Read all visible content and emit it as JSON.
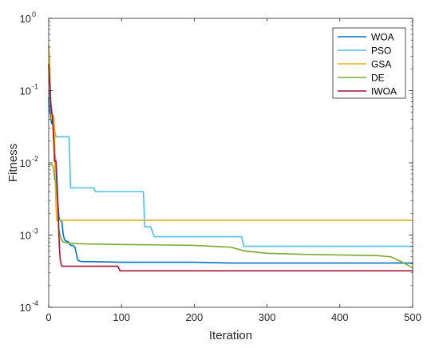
{
  "chart_data": {
    "type": "line",
    "title": "",
    "xlabel": "Iteration",
    "ylabel": "Fitness",
    "xlim": [
      0,
      500
    ],
    "ylim": [
      0.0001,
      1
    ],
    "yscale": "log",
    "grid": false,
    "legend_position": "top-right",
    "x_ticks": [
      {
        "value": 0,
        "label": "0"
      },
      {
        "value": 100,
        "label": "100"
      },
      {
        "value": 200,
        "label": "200"
      },
      {
        "value": 300,
        "label": "300"
      },
      {
        "value": 400,
        "label": "400"
      },
      {
        "value": 500,
        "label": "500"
      }
    ],
    "y_ticks": [
      {
        "value": 0.0001,
        "base": "10",
        "exp": "-4"
      },
      {
        "value": 0.001,
        "base": "10",
        "exp": "-3"
      },
      {
        "value": 0.01,
        "base": "10",
        "exp": "-2"
      },
      {
        "value": 0.1,
        "base": "10",
        "exp": "-1"
      },
      {
        "value": 1,
        "base": "10",
        "exp": "0"
      }
    ],
    "series": [
      {
        "name": "WOA",
        "color": "#0072BD",
        "x": [
          0,
          1,
          2,
          3,
          4,
          5,
          6,
          7,
          8,
          9,
          10,
          11,
          12,
          13,
          14,
          15,
          16,
          17,
          18,
          20,
          22,
          24,
          26,
          28,
          30,
          33,
          36,
          38,
          40,
          44,
          50,
          100,
          150,
          200,
          250,
          300,
          350,
          400,
          450,
          500
        ],
        "values": [
          0.0795,
          0.055,
          0.05,
          0.042,
          0.035,
          0.04,
          0.035,
          0.02,
          0.015,
          0.012,
          0.01,
          0.005,
          0.0035,
          0.0025,
          0.0018,
          0.00158,
          0.00158,
          0.00158,
          0.00158,
          0.001,
          0.00085,
          0.00082,
          0.00082,
          0.00078,
          0.00072,
          0.00072,
          0.00068,
          0.00055,
          0.00045,
          0.00043,
          0.00043,
          0.00042,
          0.00042,
          0.00042,
          0.00041,
          0.00041,
          0.00041,
          0.00041,
          0.00041,
          0.00041
        ]
      },
      {
        "name": "PSO",
        "color": "#4DBEEE",
        "x": [
          0,
          3,
          6,
          9,
          10,
          12,
          14,
          28,
          30,
          62,
          64,
          130,
          132,
          140,
          145,
          265,
          268,
          500
        ],
        "values": [
          0.1,
          0.07,
          0.04,
          0.025,
          0.0229,
          0.0229,
          0.0229,
          0.0229,
          0.0045,
          0.0045,
          0.004,
          0.004,
          0.0013,
          0.0013,
          0.00095,
          0.00095,
          0.0007,
          0.0007
        ]
      },
      {
        "name": "GSA",
        "color": "#EDB120",
        "x": [
          0,
          1,
          2,
          3,
          4,
          5,
          6,
          7,
          8,
          9,
          10,
          11,
          12,
          500
        ],
        "values": [
          0.42,
          0.3,
          0.15,
          0.06,
          0.04,
          0.045,
          0.045,
          0.045,
          0.03,
          0.006,
          0.0025,
          0.0016,
          0.0016,
          0.0016
        ]
      },
      {
        "name": "DE",
        "color": "#77AC30",
        "x": [
          0,
          2,
          4,
          6,
          7,
          8,
          10,
          12,
          14,
          16,
          18,
          20,
          25,
          30,
          40,
          60,
          100,
          150,
          200,
          250,
          270,
          300,
          350,
          400,
          450,
          470,
          480,
          490,
          500
        ],
        "values": [
          0.0095,
          0.0095,
          0.0095,
          0.009,
          0.008,
          0.006,
          0.0055,
          0.003,
          0.0012,
          0.00095,
          0.00085,
          0.0008,
          0.00078,
          0.00077,
          0.00076,
          0.00075,
          0.00074,
          0.00073,
          0.00072,
          0.00068,
          0.0006,
          0.00056,
          0.00054,
          0.00053,
          0.00052,
          0.0005,
          0.00045,
          0.0004,
          0.00035
        ]
      },
      {
        "name": "IWOA",
        "color": "#A2142F",
        "x": [
          0,
          1,
          2,
          3,
          4,
          5,
          6,
          7,
          8,
          9,
          10,
          11,
          12,
          13,
          14,
          15,
          16,
          17,
          18,
          20,
          95,
          98,
          100,
          500
        ],
        "values": [
          0.23,
          0.15,
          0.1,
          0.06,
          0.05,
          0.045,
          0.03,
          0.02,
          0.0105,
          0.0105,
          0.0105,
          0.007,
          0.004,
          0.002,
          0.001,
          0.0006,
          0.00045,
          0.0004,
          0.00037,
          0.00037,
          0.00037,
          0.00032,
          0.00032,
          0.00032
        ]
      }
    ]
  }
}
